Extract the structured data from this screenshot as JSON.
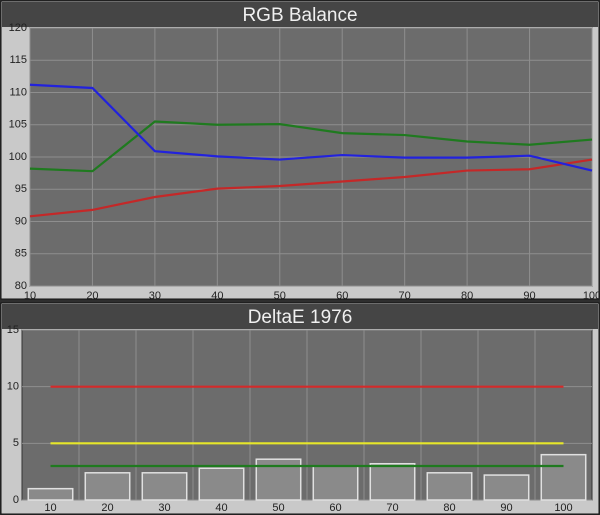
{
  "chart_data": [
    {
      "type": "line",
      "title": "RGB Balance",
      "x": [
        10,
        20,
        30,
        40,
        50,
        60,
        70,
        80,
        90,
        100
      ],
      "series": [
        {
          "color": "#c42828",
          "values": [
            90.8,
            91.8,
            93.8,
            95.1,
            95.5,
            96.2,
            96.9,
            97.9,
            98.1,
            99.6
          ]
        },
        {
          "color": "#1f7a1f",
          "values": [
            98.2,
            97.8,
            105.5,
            105.0,
            105.1,
            103.7,
            103.4,
            102.4,
            101.9,
            102.7
          ]
        },
        {
          "color": "#2222dd",
          "values": [
            111.2,
            110.7,
            100.9,
            100.1,
            99.6,
            100.3,
            99.9,
            99.9,
            100.2,
            97.9
          ]
        }
      ],
      "xlim": [
        10,
        100
      ],
      "xticks": [
        10,
        20,
        30,
        40,
        50,
        60,
        70,
        80,
        90,
        100
      ],
      "ylim": [
        80,
        120
      ],
      "yticks": [
        80,
        85,
        90,
        95,
        100,
        105,
        110,
        115,
        120
      ],
      "grid": true
    },
    {
      "type": "bar",
      "title": "DeltaE 1976",
      "categories": [
        "10",
        "20",
        "30",
        "40",
        "50",
        "60",
        "70",
        "80",
        "90",
        "100"
      ],
      "values": [
        1.0,
        2.4,
        2.4,
        2.8,
        3.6,
        3.0,
        3.2,
        2.4,
        2.2,
        4.0
      ],
      "color": "#8a8a8a",
      "reference_lines": [
        {
          "value": 10,
          "color": "#d42a2a"
        },
        {
          "value": 5,
          "color": "#e6e62a"
        },
        {
          "value": 3,
          "color": "#1f7a1f"
        }
      ],
      "ylim": [
        0,
        15
      ],
      "yticks": [
        0,
        5,
        10,
        15
      ],
      "grid": true
    }
  ]
}
